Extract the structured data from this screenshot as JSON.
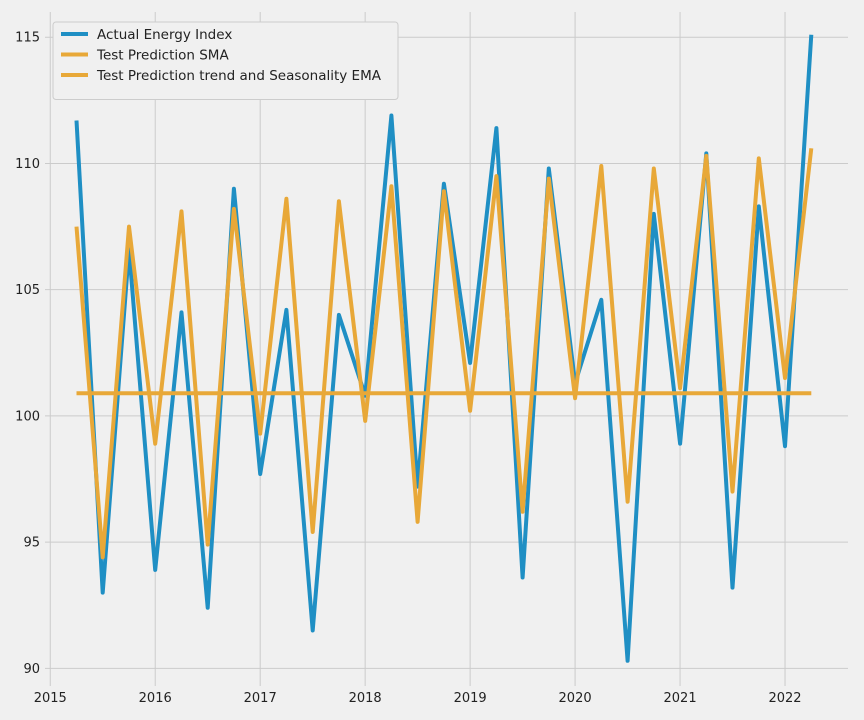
{
  "chart_data": {
    "type": "line",
    "title": "",
    "xlabel": "",
    "ylabel": "",
    "xlim": [
      2014.95,
      2022.6
    ],
    "ylim": [
      89.3,
      116.0
    ],
    "x_ticks": [
      2015,
      2016,
      2017,
      2018,
      2019,
      2020,
      2021,
      2022
    ],
    "y_ticks": [
      90,
      95,
      100,
      105,
      110,
      115
    ],
    "grid": true,
    "legend_position": "top-left",
    "series": [
      {
        "name": "Actual Energy Index",
        "color": "#1f8fc4",
        "x": [
          2015.25,
          2015.5,
          2015.75,
          2016.0,
          2016.25,
          2016.5,
          2016.75,
          2017.0,
          2017.25,
          2017.5,
          2017.75,
          2018.0,
          2018.25,
          2018.5,
          2018.75,
          2019.0,
          2019.25,
          2019.5,
          2019.75,
          2020.0,
          2020.25,
          2020.5,
          2020.75,
          2021.0,
          2021.25,
          2021.5,
          2021.75,
          2022.0,
          2022.25
        ],
        "values": [
          111.7,
          93.0,
          106.6,
          93.9,
          104.1,
          92.4,
          109.0,
          97.7,
          104.2,
          91.5,
          104.0,
          100.8,
          111.9,
          97.2,
          109.2,
          102.1,
          111.4,
          93.6,
          109.8,
          101.3,
          104.6,
          90.3,
          108.0,
          98.9,
          110.4,
          93.2,
          108.3,
          98.8,
          115.1
        ]
      },
      {
        "name": "Test Prediction SMA",
        "color": "#e8a838",
        "x": [
          2015.25,
          2022.25
        ],
        "values": [
          100.9,
          100.9
        ]
      },
      {
        "name": "Test Prediction trend and Seasonality EMA",
        "color": "#e8a838",
        "x": [
          2015.25,
          2015.5,
          2015.75,
          2016.0,
          2016.25,
          2016.5,
          2016.75,
          2017.0,
          2017.25,
          2017.5,
          2017.75,
          2018.0,
          2018.25,
          2018.5,
          2018.75,
          2019.0,
          2019.25,
          2019.5,
          2019.75,
          2020.0,
          2020.25,
          2020.5,
          2020.75,
          2021.0,
          2021.25,
          2021.5,
          2021.75,
          2022.0,
          2022.25
        ],
        "values": [
          107.5,
          94.4,
          107.5,
          98.9,
          108.1,
          94.9,
          108.2,
          99.3,
          108.6,
          95.4,
          108.5,
          99.8,
          109.1,
          95.8,
          108.9,
          100.2,
          109.5,
          96.2,
          109.4,
          100.7,
          109.9,
          96.6,
          109.8,
          101.1,
          110.3,
          97.0,
          110.2,
          101.5,
          110.6
        ]
      }
    ]
  }
}
